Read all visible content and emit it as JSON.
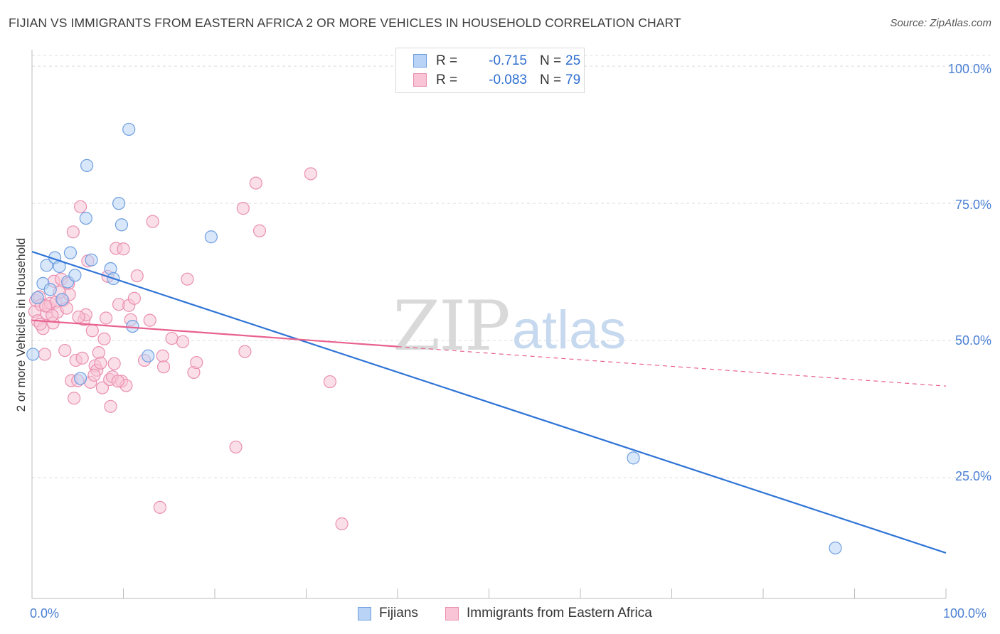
{
  "title": "FIJIAN VS IMMIGRANTS FROM EASTERN AFRICA 2 OR MORE VEHICLES IN HOUSEHOLD CORRELATION CHART",
  "source": "Source: ZipAtlas.com",
  "watermark": {
    "zip": "ZIP",
    "atlas": "atlas"
  },
  "colors": {
    "blue_fill": "#b8d3f5",
    "blue_edge": "#6f9fe0",
    "blue_line": "#2f74d6",
    "pink_fill": "#f8c4d6",
    "pink_edge": "#ea8fb0",
    "pink_line": "#e8618f",
    "grid": "#dddddd",
    "tick_text": "#4a7fd4"
  },
  "legend": {
    "series": [
      {
        "name": "Fijians",
        "r_label": "R =",
        "r_value": "-0.715",
        "n_label": "N =",
        "n_value": "25"
      },
      {
        "name": "Immigrants from Eastern Africa",
        "r_label": "R =",
        "r_value": "-0.083",
        "n_label": "N =",
        "n_value": "79"
      }
    ]
  },
  "chart_data": {
    "type": "scatter",
    "title": "FIJIAN VS IMMIGRANTS FROM EASTERN AFRICA 2 OR MORE VEHICLES IN HOUSEHOLD CORRELATION CHART",
    "xlabel": "",
    "ylabel": "2 or more Vehicles in Household",
    "xlim": [
      0,
      100
    ],
    "ylim": [
      3,
      103
    ],
    "x_tick_labels": [
      "0.0%",
      "100.0%"
    ],
    "y_ticks": [
      25,
      50,
      75,
      100
    ],
    "y_tick_labels": [
      "25.0%",
      "50.0%",
      "75.0%",
      "100.0%"
    ],
    "grid": true,
    "series": [
      {
        "name": "Fijians",
        "points": [
          [
            0.1,
            47.5
          ],
          [
            0.6,
            57.8
          ],
          [
            1.2,
            60.4
          ],
          [
            1.6,
            63.7
          ],
          [
            2.0,
            59.3
          ],
          [
            2.5,
            65.1
          ],
          [
            3.0,
            63.5
          ],
          [
            3.3,
            57.5
          ],
          [
            3.9,
            60.7
          ],
          [
            4.2,
            66.0
          ],
          [
            4.7,
            61.9
          ],
          [
            5.3,
            43.1
          ],
          [
            5.9,
            72.3
          ],
          [
            6.0,
            81.9
          ],
          [
            6.5,
            64.7
          ],
          [
            8.6,
            63.1
          ],
          [
            8.9,
            61.3
          ],
          [
            9.5,
            75.0
          ],
          [
            9.8,
            71.1
          ],
          [
            10.6,
            88.5
          ],
          [
            11.0,
            52.6
          ],
          [
            12.7,
            47.2
          ],
          [
            19.6,
            68.9
          ],
          [
            65.8,
            28.6
          ],
          [
            87.9,
            12.2
          ]
        ],
        "trend": {
          "x": [
            0,
            100
          ],
          "y": [
            66.2,
            11.3
          ],
          "style": "solid"
        }
      },
      {
        "name": "Immigrants from Eastern Africa",
        "points": [
          [
            0.3,
            55.3
          ],
          [
            0.4,
            57.3
          ],
          [
            0.6,
            53.6
          ],
          [
            0.8,
            58.0
          ],
          [
            1.0,
            56.5
          ],
          [
            1.2,
            52.2
          ],
          [
            1.4,
            47.5
          ],
          [
            1.6,
            54.9
          ],
          [
            1.8,
            56.2
          ],
          [
            2.0,
            56.8
          ],
          [
            2.3,
            53.2
          ],
          [
            2.4,
            60.8
          ],
          [
            2.6,
            57.0
          ],
          [
            2.8,
            55.2
          ],
          [
            3.2,
            61.2
          ],
          [
            3.4,
            57.3
          ],
          [
            3.6,
            48.2
          ],
          [
            3.8,
            55.9
          ],
          [
            4.0,
            60.4
          ],
          [
            4.1,
            58.4
          ],
          [
            4.3,
            42.7
          ],
          [
            4.5,
            69.8
          ],
          [
            4.6,
            39.5
          ],
          [
            4.8,
            46.4
          ],
          [
            5.0,
            42.7
          ],
          [
            5.3,
            74.4
          ],
          [
            5.5,
            46.8
          ],
          [
            5.7,
            53.8
          ],
          [
            5.9,
            54.7
          ],
          [
            6.1,
            64.5
          ],
          [
            6.4,
            42.4
          ],
          [
            6.6,
            51.8
          ],
          [
            6.9,
            45.4
          ],
          [
            7.1,
            44.6
          ],
          [
            7.3,
            47.8
          ],
          [
            7.5,
            45.9
          ],
          [
            7.7,
            41.4
          ],
          [
            7.9,
            50.3
          ],
          [
            8.1,
            54.1
          ],
          [
            8.3,
            61.7
          ],
          [
            8.5,
            42.9
          ],
          [
            8.6,
            38.0
          ],
          [
            8.8,
            43.4
          ],
          [
            9.0,
            45.8
          ],
          [
            9.2,
            66.8
          ],
          [
            9.5,
            56.6
          ],
          [
            9.8,
            42.6
          ],
          [
            10.0,
            66.7
          ],
          [
            10.3,
            41.8
          ],
          [
            10.6,
            56.4
          ],
          [
            10.8,
            53.8
          ],
          [
            11.2,
            57.7
          ],
          [
            11.5,
            61.8
          ],
          [
            12.9,
            53.7
          ],
          [
            13.2,
            71.7
          ],
          [
            14.0,
            19.6
          ],
          [
            14.3,
            47.2
          ],
          [
            14.4,
            45.2
          ],
          [
            15.3,
            50.4
          ],
          [
            16.5,
            49.8
          ],
          [
            17.0,
            61.2
          ],
          [
            17.7,
            44.2
          ],
          [
            18.0,
            46.0
          ],
          [
            22.3,
            30.6
          ],
          [
            23.1,
            74.1
          ],
          [
            23.3,
            48.0
          ],
          [
            24.5,
            78.7
          ],
          [
            24.9,
            70.0
          ],
          [
            30.5,
            80.4
          ],
          [
            32.6,
            42.5
          ],
          [
            33.9,
            16.6
          ],
          [
            5.1,
            54.3
          ],
          [
            2.2,
            54.6
          ],
          [
            1.5,
            56.3
          ],
          [
            3.0,
            58.8
          ],
          [
            6.8,
            43.7
          ],
          [
            9.4,
            42.6
          ],
          [
            0.9,
            53.0
          ],
          [
            12.3,
            46.4
          ]
        ],
        "trend": {
          "x": [
            0,
            100
          ],
          "y": [
            53.7,
            41.7
          ],
          "solid_until_x": 40,
          "style": "solid-then-dashed"
        }
      }
    ]
  }
}
